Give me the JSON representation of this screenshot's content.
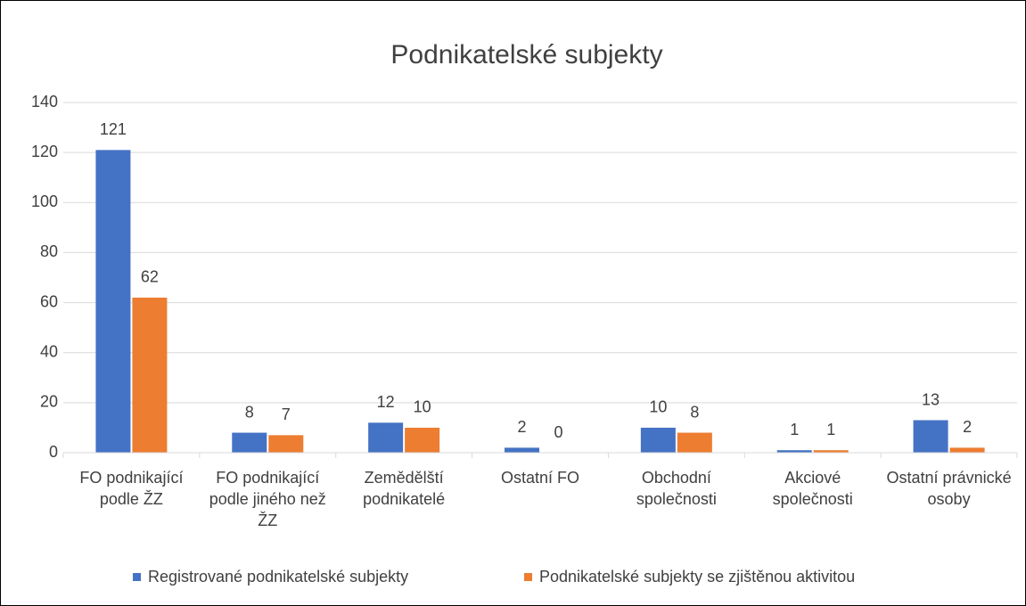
{
  "chart_data": {
    "type": "bar",
    "title": "Podnikatelské subjekty",
    "categories": [
      "FO podnikající podle ŽZ",
      "FO podnikající podle jiného než ŽZ",
      "Zemědělští podnikatelé",
      "Ostatní FO",
      "Obchodní společnosti",
      "Akciové společnosti",
      "Ostatní právnické osoby"
    ],
    "series": [
      {
        "name": "Registrované podnikatelské subjekty",
        "color": "#4472c4",
        "values": [
          121,
          8,
          12,
          2,
          10,
          1,
          13
        ]
      },
      {
        "name": "Podnikatelské subjekty se zjištěnou aktivitou",
        "color": "#ed7d31",
        "values": [
          62,
          7,
          10,
          0,
          8,
          1,
          2
        ]
      }
    ],
    "ylim": [
      0,
      140
    ],
    "yticks": [
      0,
      20,
      40,
      60,
      80,
      100,
      120,
      140
    ],
    "grid": true,
    "legend": "bottom"
  }
}
